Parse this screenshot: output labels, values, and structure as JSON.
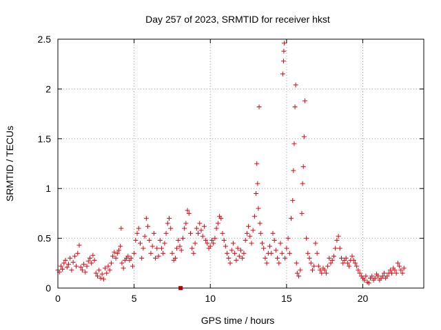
{
  "chart_data": {
    "type": "scatter",
    "title": "Day 257 of 2023, SRMTID for receiver hkst",
    "xlabel": "GPS time / hours",
    "ylabel": "SRMTID / TECUs",
    "xlim": [
      0,
      24
    ],
    "ylim": [
      0,
      2.5
    ],
    "xticks": [
      0,
      5,
      10,
      15,
      20
    ],
    "xtick_labels": [
      "0",
      "5",
      "10",
      "15",
      "20"
    ],
    "yticks": [
      0,
      0.5,
      1,
      1.5,
      2,
      2.5
    ],
    "ytick_labels": [
      "0",
      "0.5",
      "1",
      "1.5",
      "2",
      "2.5"
    ],
    "grid": true,
    "marker": "+",
    "colors": {
      "series": "#e8000b",
      "grid": "#a0a0a0",
      "axis": "#000000"
    },
    "series": [
      {
        "name": "SRMTID",
        "points": [
          [
            0.0,
            0.18
          ],
          [
            0.1,
            0.16
          ],
          [
            0.2,
            0.22
          ],
          [
            0.3,
            0.19
          ],
          [
            0.4,
            0.25
          ],
          [
            0.5,
            0.28
          ],
          [
            0.6,
            0.21
          ],
          [
            0.7,
            0.24
          ],
          [
            0.8,
            0.3
          ],
          [
            0.9,
            0.18
          ],
          [
            1.0,
            0.26
          ],
          [
            1.1,
            0.32
          ],
          [
            1.2,
            0.22
          ],
          [
            1.3,
            0.35
          ],
          [
            1.4,
            0.43
          ],
          [
            1.5,
            0.21
          ],
          [
            1.6,
            0.18
          ],
          [
            1.7,
            0.24
          ],
          [
            1.8,
            0.16
          ],
          [
            1.9,
            0.22
          ],
          [
            2.0,
            0.27
          ],
          [
            2.1,
            0.3
          ],
          [
            2.2,
            0.25
          ],
          [
            2.3,
            0.33
          ],
          [
            2.4,
            0.28
          ],
          [
            2.5,
            0.15
          ],
          [
            2.6,
            0.12
          ],
          [
            2.7,
            0.18
          ],
          [
            2.8,
            0.1
          ],
          [
            2.9,
            0.14
          ],
          [
            3.0,
            0.09
          ],
          [
            3.1,
            0.2
          ],
          [
            3.2,
            0.15
          ],
          [
            3.3,
            0.22
          ],
          [
            3.4,
            0.18
          ],
          [
            3.5,
            0.25
          ],
          [
            3.6,
            0.32
          ],
          [
            3.7,
            0.36
          ],
          [
            3.8,
            0.3
          ],
          [
            3.9,
            0.35
          ],
          [
            4.0,
            0.38
          ],
          [
            4.1,
            0.42
          ],
          [
            4.15,
            0.6
          ],
          [
            4.2,
            0.25
          ],
          [
            4.3,
            0.2
          ],
          [
            4.4,
            0.28
          ],
          [
            4.5,
            0.3
          ],
          [
            4.6,
            0.32
          ],
          [
            4.7,
            0.28
          ],
          [
            4.8,
            0.3
          ],
          [
            4.9,
            0.22
          ],
          [
            5.0,
            0.35
          ],
          [
            5.1,
            0.48
          ],
          [
            5.2,
            0.55
          ],
          [
            5.3,
            0.6
          ],
          [
            5.4,
            0.45
          ],
          [
            5.5,
            0.3
          ],
          [
            5.6,
            0.4
          ],
          [
            5.7,
            0.52
          ],
          [
            5.8,
            0.7
          ],
          [
            5.9,
            0.62
          ],
          [
            6.0,
            0.48
          ],
          [
            6.1,
            0.35
          ],
          [
            6.2,
            0.42
          ],
          [
            6.3,
            0.55
          ],
          [
            6.4,
            0.3
          ],
          [
            6.5,
            0.4
          ],
          [
            6.6,
            0.32
          ],
          [
            6.7,
            0.48
          ],
          [
            6.8,
            0.4
          ],
          [
            6.9,
            0.35
          ],
          [
            7.0,
            0.45
          ],
          [
            7.1,
            0.55
          ],
          [
            7.2,
            0.65
          ],
          [
            7.3,
            0.7
          ],
          [
            7.4,
            0.6
          ],
          [
            7.5,
            0.35
          ],
          [
            7.6,
            0.28
          ],
          [
            7.7,
            0.3
          ],
          [
            7.8,
            0.4
          ],
          [
            7.9,
            0.48
          ],
          [
            8.0,
            0.42
          ],
          [
            8.1,
            0.38
          ],
          [
            8.2,
            0.5
          ],
          [
            8.3,
            0.6
          ],
          [
            8.4,
            0.65
          ],
          [
            8.5,
            0.78
          ],
          [
            8.6,
            0.75
          ],
          [
            8.7,
            0.55
          ],
          [
            8.8,
            0.4
          ],
          [
            8.9,
            0.35
          ],
          [
            9.0,
            0.45
          ],
          [
            9.1,
            0.6
          ],
          [
            9.2,
            0.55
          ],
          [
            9.3,
            0.65
          ],
          [
            9.4,
            0.58
          ],
          [
            9.5,
            0.52
          ],
          [
            9.6,
            0.62
          ],
          [
            9.7,
            0.48
          ],
          [
            9.8,
            0.45
          ],
          [
            9.9,
            0.4
          ],
          [
            10.0,
            0.42
          ],
          [
            10.1,
            0.48
          ],
          [
            10.2,
            0.45
          ],
          [
            10.3,
            0.5
          ],
          [
            10.4,
            0.6
          ],
          [
            10.5,
            0.65
          ],
          [
            10.6,
            0.72
          ],
          [
            10.7,
            0.7
          ],
          [
            10.8,
            0.55
          ],
          [
            10.9,
            0.48
          ],
          [
            11.0,
            0.42
          ],
          [
            11.1,
            0.35
          ],
          [
            11.2,
            0.3
          ],
          [
            11.3,
            0.25
          ],
          [
            11.4,
            0.38
          ],
          [
            11.5,
            0.45
          ],
          [
            11.6,
            0.35
          ],
          [
            11.7,
            0.28
          ],
          [
            11.8,
            0.4
          ],
          [
            11.9,
            0.32
          ],
          [
            12.0,
            0.38
          ],
          [
            12.1,
            0.3
          ],
          [
            12.2,
            0.35
          ],
          [
            12.3,
            0.48
          ],
          [
            12.4,
            0.55
          ],
          [
            12.5,
            0.62
          ],
          [
            12.6,
            0.52
          ],
          [
            12.7,
            0.45
          ],
          [
            12.8,
            0.58
          ],
          [
            12.9,
            0.72
          ],
          [
            13.0,
            0.95
          ],
          [
            13.05,
            1.25
          ],
          [
            13.1,
            1.05
          ],
          [
            13.15,
            0.8
          ],
          [
            13.2,
            1.82
          ],
          [
            13.25,
            0.65
          ],
          [
            13.3,
            0.55
          ],
          [
            13.4,
            0.45
          ],
          [
            13.5,
            0.4
          ],
          [
            13.6,
            0.3
          ],
          [
            13.7,
            0.25
          ],
          [
            13.8,
            0.35
          ],
          [
            13.9,
            0.42
          ],
          [
            14.0,
            0.35
          ],
          [
            14.1,
            0.55
          ],
          [
            14.2,
            0.48
          ],
          [
            14.3,
            0.38
          ],
          [
            14.4,
            0.3
          ],
          [
            14.5,
            0.25
          ],
          [
            14.6,
            0.45
          ],
          [
            14.7,
            0.35
          ],
          [
            14.75,
            2.15
          ],
          [
            14.8,
            2.28
          ],
          [
            14.82,
            2.38
          ],
          [
            14.85,
            2.46
          ],
          [
            14.9,
            0.3
          ],
          [
            15.0,
            0.4
          ],
          [
            15.1,
            0.5
          ],
          [
            15.2,
            0.35
          ],
          [
            15.3,
            0.7
          ],
          [
            15.4,
            0.88
          ],
          [
            15.45,
            1.18
          ],
          [
            15.5,
            1.45
          ],
          [
            15.55,
            1.82
          ],
          [
            15.6,
            2.04
          ],
          [
            15.65,
            0.25
          ],
          [
            15.7,
            0.15
          ],
          [
            15.8,
            0.12
          ],
          [
            15.9,
            0.18
          ],
          [
            16.0,
            0.75
          ],
          [
            16.05,
            1.05
          ],
          [
            16.1,
            1.22
          ],
          [
            16.15,
            1.52
          ],
          [
            16.2,
            1.88
          ],
          [
            16.3,
            0.5
          ],
          [
            16.4,
            0.35
          ],
          [
            16.5,
            0.3
          ],
          [
            16.6,
            0.25
          ],
          [
            16.7,
            0.18
          ],
          [
            16.8,
            0.22
          ],
          [
            16.9,
            0.45
          ],
          [
            17.0,
            0.35
          ],
          [
            17.1,
            0.22
          ],
          [
            17.2,
            0.18
          ],
          [
            17.3,
            0.15
          ],
          [
            17.4,
            0.2
          ],
          [
            17.5,
            0.18
          ],
          [
            17.6,
            0.15
          ],
          [
            17.7,
            0.22
          ],
          [
            17.8,
            0.3
          ],
          [
            17.9,
            0.25
          ],
          [
            18.0,
            0.28
          ],
          [
            18.1,
            0.32
          ],
          [
            18.2,
            0.4
          ],
          [
            18.3,
            0.48
          ],
          [
            18.4,
            0.52
          ],
          [
            18.5,
            0.4
          ],
          [
            18.6,
            0.3
          ],
          [
            18.7,
            0.25
          ],
          [
            18.8,
            0.28
          ],
          [
            18.9,
            0.3
          ],
          [
            19.0,
            0.25
          ],
          [
            19.1,
            0.22
          ],
          [
            19.2,
            0.28
          ],
          [
            19.3,
            0.32
          ],
          [
            19.4,
            0.28
          ],
          [
            19.5,
            0.25
          ],
          [
            19.6,
            0.22
          ],
          [
            19.7,
            0.18
          ],
          [
            19.8,
            0.15
          ],
          [
            19.9,
            0.12
          ],
          [
            20.0,
            0.1
          ],
          [
            20.1,
            0.08
          ],
          [
            20.2,
            0.12
          ],
          [
            20.3,
            0.06
          ],
          [
            20.4,
            0.05
          ],
          [
            20.5,
            0.1
          ],
          [
            20.6,
            0.12
          ],
          [
            20.7,
            0.08
          ],
          [
            20.8,
            0.1
          ],
          [
            20.9,
            0.14
          ],
          [
            21.0,
            0.12
          ],
          [
            21.1,
            0.08
          ],
          [
            21.2,
            0.1
          ],
          [
            21.3,
            0.12
          ],
          [
            21.4,
            0.15
          ],
          [
            21.5,
            0.1
          ],
          [
            21.6,
            0.12
          ],
          [
            21.7,
            0.15
          ],
          [
            21.8,
            0.18
          ],
          [
            21.9,
            0.15
          ],
          [
            22.0,
            0.2
          ],
          [
            22.1,
            0.18
          ],
          [
            22.2,
            0.15
          ],
          [
            22.3,
            0.25
          ],
          [
            22.4,
            0.22
          ],
          [
            22.5,
            0.18
          ],
          [
            22.6,
            0.15
          ],
          [
            22.7,
            0.2
          ]
        ],
        "outlier_square": [
          8.05,
          0.0
        ]
      }
    ]
  }
}
